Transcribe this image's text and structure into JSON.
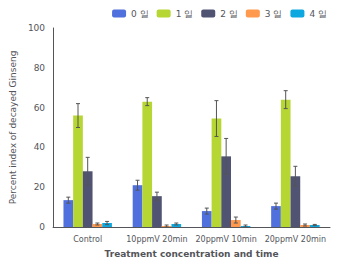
{
  "chart_data": {
    "type": "bar",
    "xlabel": "Treatment concentration and time",
    "ylabel": "Percent index of decayed Ginseng",
    "categories": [
      "Control",
      "10ppmV 20min",
      "20ppmV 10min",
      "20ppmV 20min"
    ],
    "series": [
      {
        "name": "0 일",
        "values": [
          13.5,
          21.0,
          8.0,
          10.5
        ],
        "errors": [
          1.5,
          2.5,
          1.5,
          1.5
        ]
      },
      {
        "name": "1 일",
        "values": [
          56.0,
          63.0,
          54.5,
          64.0
        ],
        "errors": [
          6.0,
          2.0,
          9.0,
          4.5
        ]
      },
      {
        "name": "2 일",
        "values": [
          28.0,
          15.5,
          35.5,
          25.5
        ],
        "errors": [
          7.0,
          2.0,
          9.0,
          5.0
        ]
      },
      {
        "name": "3 일",
        "values": [
          1.5,
          0.5,
          3.5,
          1.0
        ],
        "errors": [
          0.5,
          0.5,
          1.5,
          0.5
        ]
      },
      {
        "name": "4 일",
        "values": [
          2.0,
          1.5,
          0.5,
          1.0
        ],
        "errors": [
          0.8,
          0.5,
          0.5,
          0.3
        ]
      }
    ],
    "ylim": [
      0,
      100
    ],
    "yticks": [
      0,
      20,
      40,
      60,
      80,
      100
    ],
    "grid": false,
    "legend": "upper right"
  }
}
